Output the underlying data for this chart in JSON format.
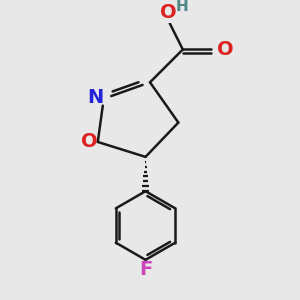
{
  "bg_color": "#e8e8e8",
  "bond_color": "#1a1a1a",
  "N_color": "#2222dd",
  "O_color": "#dd2222",
  "F_color": "#cc44bb",
  "H_color": "#4d8888",
  "line_width": 1.8,
  "font_size_heavy": 14,
  "font_size_H": 11,
  "xlim": [
    -0.65,
    0.75
  ],
  "ylim": [
    -0.9,
    0.95
  ]
}
